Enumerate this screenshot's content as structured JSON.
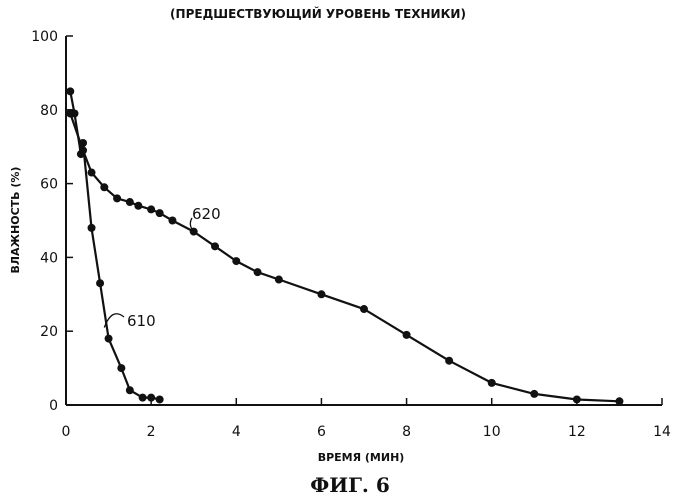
{
  "chart_data": {
    "type": "line",
    "title": "(ПРЕДШЕСТВУЮЩИЙ УРОВЕНЬ ТЕХНИКИ)",
    "xlabel": "ВРЕМЯ (МИН)",
    "ylabel": "ВЛАЖНОСТЬ (%)",
    "caption": "ФИГ. 6",
    "xlim": [
      0,
      14
    ],
    "ylim": [
      0,
      100
    ],
    "xticks": [
      0,
      2,
      4,
      6,
      8,
      10,
      12,
      14
    ],
    "yticks": [
      0,
      20,
      40,
      60,
      80,
      100
    ],
    "grid": false,
    "series": [
      {
        "name": "610",
        "x": [
          0.1,
          0.2,
          0.35,
          0.4,
          0.6,
          0.8,
          1.0,
          1.3,
          1.5,
          1.8,
          2.0,
          2.2
        ],
        "y": [
          85,
          79,
          68,
          71,
          48,
          33,
          18,
          10,
          4,
          2,
          2,
          1.5
        ]
      },
      {
        "name": "620",
        "x": [
          0.1,
          0.4,
          0.6,
          0.9,
          1.2,
          1.5,
          1.7,
          2.0,
          2.2,
          2.5,
          3.0,
          3.5,
          4.0,
          4.5,
          5.0,
          6.0,
          7.0,
          8.0,
          9.0,
          10.0,
          11.0,
          12.0,
          13.0
        ],
        "y": [
          79,
          69,
          63,
          59,
          56,
          55,
          54,
          53,
          52,
          50,
          47,
          43,
          39,
          36,
          34,
          30,
          26,
          19,
          12,
          6,
          3,
          1.5,
          1
        ]
      }
    ]
  }
}
